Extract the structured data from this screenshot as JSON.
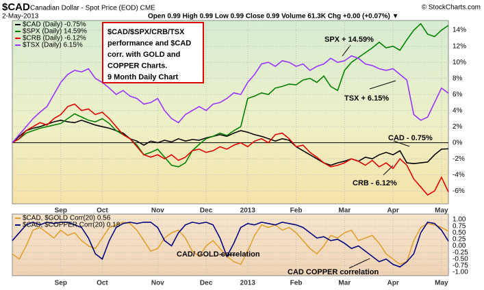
{
  "header": {
    "symbol": "$CAD",
    "name": "Canadian Dollar - Spot Price (EOD) CME",
    "date": "2-May-2013",
    "quote": "Open 0.99  High 0.99  Low 0.99  Close 0.99  Volume 61.3K  Chg +0.00 (+0.07%) ▼",
    "source": "© StockCharts.com"
  },
  "chart_data": [
    {
      "type": "line",
      "categories": [
        null,
        null,
        null,
        null,
        null,
        null,
        null,
        "Sep",
        null,
        null,
        null,
        null,
        null,
        "Oct",
        null,
        null,
        null,
        null,
        null,
        null,
        null,
        "Nov",
        null,
        null,
        null,
        null,
        null,
        null,
        "Dec",
        null,
        null,
        null,
        null,
        null,
        "2013",
        null,
        null,
        null,
        null,
        null,
        null,
        "Feb",
        null,
        null,
        null,
        null,
        null,
        null,
        "Mar",
        null,
        null,
        null,
        null,
        null,
        null,
        "Apr",
        null,
        null,
        null,
        null,
        null,
        null,
        "May",
        null
      ],
      "ylim": [
        -7.6,
        15.2
      ],
      "yticks": [
        {
          "value": -6,
          "label": "-6%"
        },
        {
          "value": -4,
          "label": "-4%"
        },
        {
          "value": -2,
          "label": "-2%"
        },
        {
          "value": 0,
          "label": "0%"
        },
        {
          "value": 2,
          "label": "2%"
        },
        {
          "value": 4,
          "label": "4%"
        },
        {
          "value": 6,
          "label": "6%"
        },
        {
          "value": 8,
          "label": "8%"
        },
        {
          "value": 10,
          "label": "10%"
        },
        {
          "value": 12,
          "label": "12%"
        },
        {
          "value": 14,
          "label": "14%"
        }
      ],
      "grid": true,
      "legend": "top-left",
      "series": [
        {
          "name": "$CAD (Daily) -0.75%",
          "color": "#000000",
          "values": [
            0,
            0.8,
            1.5,
            1.8,
            2.0,
            2.3,
            2.6,
            2.8,
            2.6,
            2.5,
            2.8,
            2.5,
            2.2,
            2.0,
            1.8,
            1.5,
            1.2,
            0.5,
            0.2,
            -0.3,
            0.2,
            0.0,
            0.3,
            0.1,
            0.5,
            0.2,
            0.4,
            0.3,
            0.6,
            0.8,
            1.0,
            0.8,
            1.2,
            1.5,
            1.3,
            1.0,
            0.8,
            0.5,
            0.2,
            0.5,
            0.3,
            -0.5,
            -1.0,
            -1.5,
            -2.0,
            -2.5,
            -2.8,
            -2.5,
            -2.3,
            -2.0,
            -2.3,
            -1.8,
            -2.0,
            -1.5,
            -1.2,
            -1.5,
            -1.0,
            -2.5,
            -2.6,
            -2.5,
            -2.4,
            -1.5,
            -0.8,
            -0.75
          ]
        },
        {
          "name": "$SPX (Daily) 14.59%",
          "color": "#008000",
          "values": [
            0,
            0.5,
            1.2,
            1.5,
            1.8,
            2.0,
            2.2,
            2.4,
            3.0,
            3.6,
            3.2,
            2.8,
            2.6,
            3.0,
            2.4,
            1.5,
            1.0,
            0.5,
            -0.3,
            -1.5,
            -1.2,
            -0.8,
            -1.8,
            -2.8,
            -3.0,
            -2.5,
            -1.0,
            -0.2,
            0.5,
            0.8,
            1.2,
            0.9,
            1.5,
            2.0,
            5.5,
            5.8,
            6.2,
            6.0,
            6.8,
            7.0,
            7.3,
            7.2,
            7.8,
            8.0,
            7.5,
            8.3,
            7.0,
            6.5,
            9.0,
            10.0,
            10.6,
            11.2,
            11.8,
            12.5,
            11.8,
            12.0,
            11.5,
            12.8,
            14.0,
            14.8,
            13.5,
            13.2,
            14.0,
            14.6
          ]
        },
        {
          "name": "$CRB (Daily) -6.12%",
          "color": "#e00000",
          "values": [
            0,
            0.5,
            1.5,
            2.0,
            2.5,
            2.2,
            3.0,
            3.5,
            4.5,
            4.8,
            4.0,
            4.2,
            3.5,
            3.8,
            3.0,
            2.0,
            1.0,
            0.5,
            -0.5,
            -1.5,
            -1.8,
            -1.5,
            -2.0,
            -1.5,
            -2.2,
            -1.8,
            -1.0,
            -0.8,
            -1.2,
            -1.0,
            -0.5,
            -0.8,
            -0.3,
            0.0,
            -0.5,
            0.2,
            0.5,
            0.0,
            1.0,
            1.2,
            0.5,
            -0.5,
            -0.3,
            -1.2,
            -1.8,
            -2.5,
            -3.0,
            -2.8,
            -2.5,
            -2.0,
            -2.3,
            -2.8,
            -2.2,
            -3.0,
            -2.5,
            -3.2,
            -2.0,
            -2.8,
            -4.5,
            -5.5,
            -6.5,
            -6.0,
            -4.3,
            -6.12
          ]
        },
        {
          "name": "$TSX (Daily) 6.15%",
          "color": "#9933ff",
          "values": [
            0,
            1.0,
            2.0,
            3.0,
            3.8,
            4.5,
            6.0,
            7.5,
            8.5,
            9.0,
            8.8,
            9.2,
            8.0,
            7.5,
            6.8,
            6.0,
            6.5,
            5.8,
            5.5,
            4.8,
            5.0,
            5.5,
            4.0,
            3.0,
            2.5,
            3.5,
            4.0,
            4.5,
            4.0,
            4.8,
            5.0,
            5.5,
            6.2,
            6.0,
            7.5,
            8.5,
            9.8,
            10.0,
            9.5,
            10.2,
            10.0,
            9.5,
            9.8,
            9.0,
            9.5,
            9.8,
            10.5,
            10.0,
            10.2,
            10.8,
            10.5,
            9.8,
            9.6,
            9.2,
            9.0,
            9.2,
            8.5,
            7.8,
            3.5,
            2.8,
            3.2,
            5.0,
            6.8,
            6.15
          ]
        }
      ],
      "annotations": [
        "SPX + 14.59%",
        "TSX + 6.15%",
        "CAD - 0.75%",
        "CRB - 6.12%"
      ],
      "box": [
        "$CAD/$SPX/CRB/TSX",
        "performance  and $CAD",
        "corr. with GOLD and",
        "COPPER Charts.",
        "9 Month Daily Chart"
      ]
    },
    {
      "type": "line",
      "categories": [
        null,
        null,
        null,
        null,
        null,
        null,
        null,
        "Sep",
        null,
        null,
        null,
        null,
        null,
        "Oct",
        null,
        null,
        null,
        null,
        null,
        null,
        null,
        "Nov",
        null,
        null,
        null,
        null,
        null,
        null,
        "Dec",
        null,
        null,
        null,
        null,
        null,
        "2013",
        null,
        null,
        null,
        null,
        null,
        null,
        "Feb",
        null,
        null,
        null,
        null,
        null,
        null,
        "Mar",
        null,
        null,
        null,
        null,
        null,
        null,
        "Apr",
        null,
        null,
        null,
        null,
        null,
        null,
        "May",
        null
      ],
      "ylim": [
        -1.13,
        1.21
      ],
      "yticks": [
        {
          "value": -1,
          "label": "-1.00"
        },
        {
          "value": -0.75,
          "label": "-0.75"
        },
        {
          "value": -0.5,
          "label": "-0.50"
        },
        {
          "value": -0.25,
          "label": "-0.25"
        },
        {
          "value": 0,
          "label": "0.00"
        },
        {
          "value": 0.25,
          "label": "0.25"
        },
        {
          "value": 0.5,
          "label": "0.50"
        },
        {
          "value": 0.75,
          "label": "0.75"
        },
        {
          "value": 1,
          "label": "1.00"
        }
      ],
      "grid": true,
      "legend": "top-left",
      "series": [
        {
          "name": "$CAD, $GOLD Corr(20) 0.56",
          "color": "#e0a030",
          "values": [
            -0.3,
            -0.5,
            0.0,
            0.6,
            0.7,
            0.5,
            0.3,
            0.6,
            0.4,
            0.5,
            0.2,
            0.0,
            -0.1,
            0.3,
            0.7,
            0.8,
            0.9,
            0.85,
            0.6,
            0.2,
            -0.2,
            -0.1,
            0.3,
            0.5,
            0.6,
            0.3,
            -0.2,
            -0.4,
            0.0,
            0.2,
            -0.1,
            -0.4,
            -0.6,
            -0.7,
            -0.2,
            0.4,
            0.8,
            0.7,
            0.8,
            0.6,
            0.7,
            0.5,
            0.2,
            -0.1,
            -0.3,
            0.0,
            0.4,
            0.3,
            0.5,
            0.6,
            0.2,
            0.3,
            0.4,
            0.1,
            -0.3,
            -0.5,
            -0.7,
            -0.6,
            0.2,
            0.7,
            0.85,
            0.8,
            0.7,
            0.56
          ]
        },
        {
          "name": "$CAD, $COPPER Corr(20) 0.18",
          "color": "#000080",
          "values": [
            0.2,
            0.5,
            0.8,
            0.9,
            0.8,
            0.9,
            0.85,
            0.9,
            0.9,
            0.8,
            0.7,
            0.3,
            -0.3,
            -0.5,
            0.2,
            0.7,
            0.85,
            0.9,
            0.85,
            0.9,
            0.9,
            0.7,
            0.2,
            0.0,
            0.5,
            0.8,
            0.9,
            0.85,
            0.9,
            0.8,
            0.3,
            -0.4,
            0.1,
            0.7,
            0.85,
            0.8,
            0.9,
            0.85,
            0.8,
            0.9,
            0.85,
            0.8,
            0.7,
            0.5,
            0.3,
            0.35,
            0.2,
            0.25,
            0.1,
            -0.1,
            0.0,
            -0.2,
            -0.4,
            -0.6,
            -0.5,
            -0.7,
            -0.8,
            -0.6,
            -0.3,
            0.5,
            0.9,
            0.85,
            0.6,
            0.18
          ]
        }
      ],
      "annotations": [
        "CAD/ GOLD correlation",
        "CAD COPPER correlation"
      ]
    }
  ]
}
